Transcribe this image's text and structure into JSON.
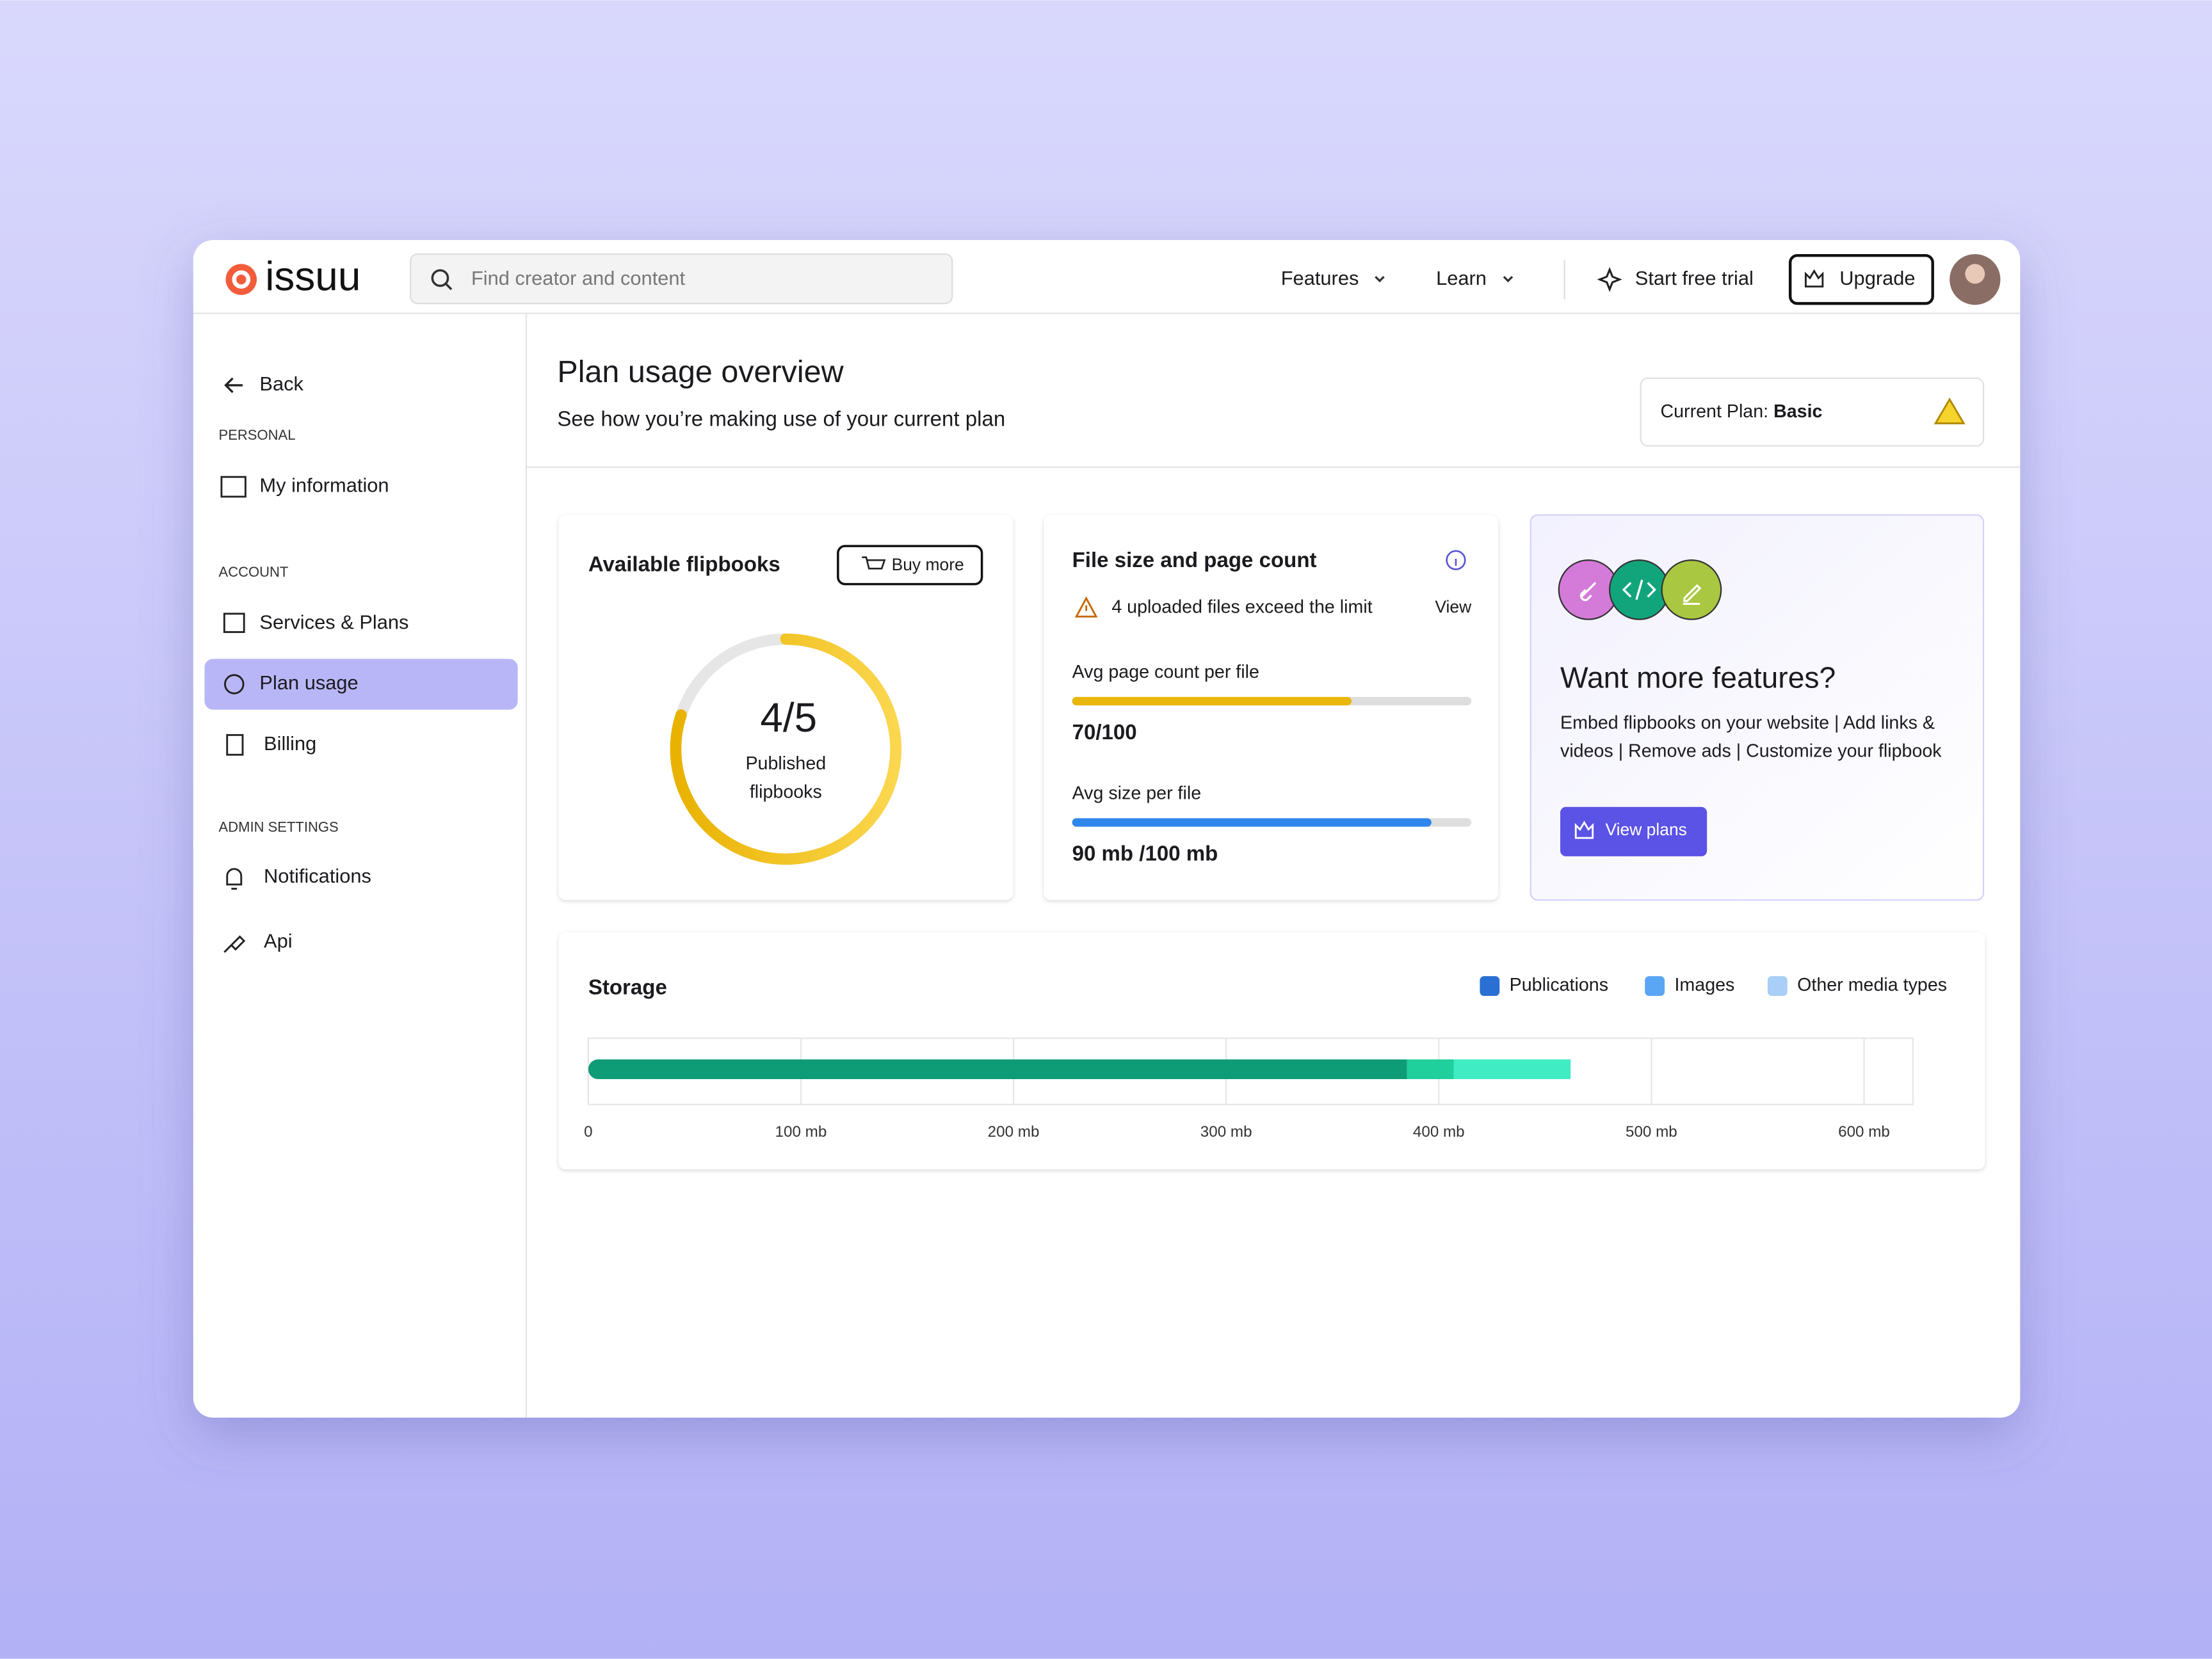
{
  "nav": {
    "logo": "issuu",
    "search_placeholder": "Find creator and content",
    "menu": [
      "Features",
      "Learn"
    ],
    "start_trial": "Start free trial",
    "upgrade": "Upgrade"
  },
  "sidebar": {
    "back": "Back",
    "sections": [
      {
        "heading": "PERSONAL",
        "items": [
          "My information"
        ]
      },
      {
        "heading": "ACCOUNT",
        "items": [
          "Services & Plans",
          "Plan usage",
          "Billing"
        ]
      },
      {
        "heading": "ADMIN SETTINGS",
        "items": [
          "Notifications",
          "Api"
        ]
      }
    ]
  },
  "header": {
    "title": "Plan usage overview",
    "subtitle": "See how you’re making use of your current plan",
    "plan_label": "Current Plan:",
    "plan_name": "Basic"
  },
  "flipbooks": {
    "title": "Available flipbooks",
    "button": "Buy more",
    "used": 4,
    "total": 5,
    "value_label": "4/5",
    "caption": [
      "Published",
      "flipbooks"
    ]
  },
  "file_size": {
    "title": "File size and page count",
    "warning": "4 uploaded files exceed the limit",
    "view": "View",
    "metrics": [
      {
        "label": "Avg page count per file",
        "value": 70,
        "max": 100,
        "value_label": "70/100",
        "color": "#e9b70a"
      },
      {
        "label": "Avg size per file",
        "value": 90,
        "max": 100,
        "value_label": "90 mb /100 mb",
        "color": "#2f86eb"
      }
    ]
  },
  "promo": {
    "title": "Want more features?",
    "text": [
      "Embed flipbooks on your website | Add links &",
      "videos | Remove ads | Customize your flipbook"
    ],
    "button": "View plans"
  },
  "chart_data": {
    "type": "stacked_hbar",
    "title": "Storage",
    "orientation": "horizontal",
    "series": [
      {
        "name": "Publications",
        "color": "#2a6fd3",
        "bar_color": "#0e9c76",
        "values": [
          385
        ]
      },
      {
        "name": "Images",
        "color": "#5ba6f4",
        "bar_color": "#1fcf9c",
        "values": [
          22
        ]
      },
      {
        "name": "Other media types",
        "color": "#a9cff8",
        "bar_color": "#40ecc3",
        "values": [
          55
        ]
      }
    ],
    "xlim": [
      0,
      623
    ],
    "xticks": [
      0,
      {
        "value": 100,
        "label": "100 mb"
      },
      {
        "value": 200,
        "label": "200 mb"
      },
      {
        "value": 300,
        "label": "300 mb"
      },
      {
        "value": 400,
        "label": "400 mb"
      },
      {
        "value": 500,
        "label": "500 mb"
      },
      {
        "value": 600,
        "label": "600 mb"
      }
    ],
    "grid": true
  }
}
